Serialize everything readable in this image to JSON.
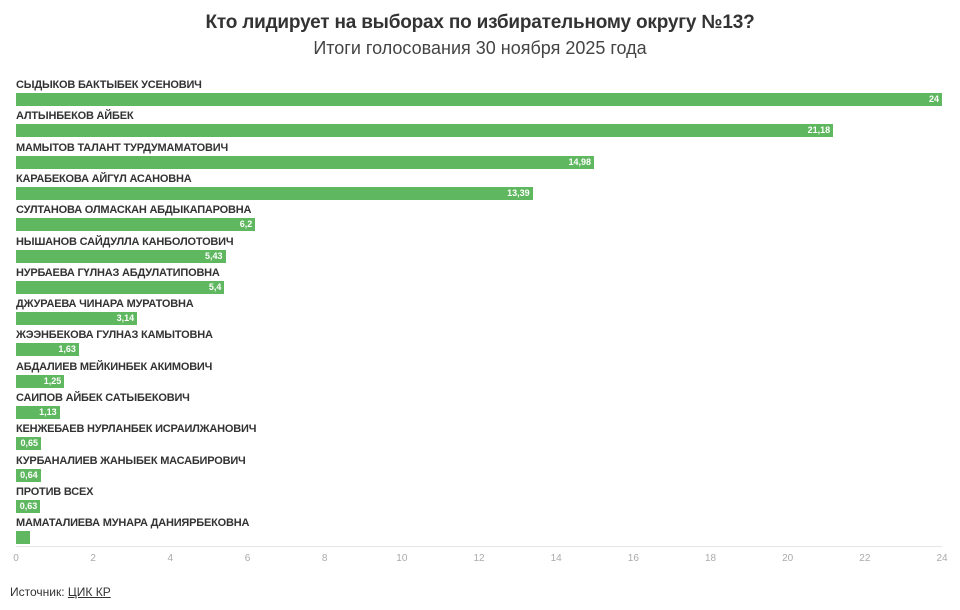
{
  "header": {
    "title": "Кто лидирует на выборах по избирательному округу №13?",
    "subtitle": "Итоги голосования 30 ноября 2025 года"
  },
  "footer": {
    "source_label": "Источник:",
    "source_link": "ЦИК КР"
  },
  "colors": {
    "bar": "#5fb75f",
    "text": "#333333",
    "axis_tick": "#aaaaaa"
  },
  "chart_data": {
    "type": "bar",
    "orientation": "horizontal",
    "title": "Кто лидирует на выборах по избирательному округу №13?",
    "subtitle": "Итоги голосования 30 ноября 2025 года",
    "xlabel": "",
    "ylabel": "",
    "xlim": [
      0,
      24
    ],
    "xticks": [
      "0",
      "2",
      "4",
      "6",
      "8",
      "10",
      "12",
      "14",
      "16",
      "18",
      "20",
      "22",
      "24"
    ],
    "grid": false,
    "legend": null,
    "categories": [
      "СЫДЫКОВ БАКТЫБЕК УСЕНОВИЧ",
      "АЛТЫНБЕКОВ АЙБЕК",
      "МАМЫТОВ ТАЛАНТ ТУРДУМАМАТОВИЧ",
      "КАРАБЕКОВА АЙГҮЛ АСАНОВНА",
      "СУЛТАНОВА ОЛМАСКАН АБДЫКАПАРОВНА",
      "НЫШАНОВ САЙДУЛЛА КАНБОЛОТОВИЧ",
      "НУРБАЕВА ГҮЛНАЗ АБДУЛАТИПОВНА",
      "ДЖУРАЕВА ЧИНАРА МУРАТОВНА",
      "ЖЭЭНБЕКОВА ГУЛНАЗ КАМЫТОВНА",
      "АБДАЛИЕВ МЕЙКИНБЕК АКИМОВИЧ",
      "САИПОВ АЙБЕК САТЫБЕКОВИЧ",
      "КЕНЖЕБАЕВ НУРЛАНБЕК ИСРАИЛЖАНОВИЧ",
      "КУРБАНАЛИЕВ ЖАНЫБЕК МАСАБИРОВИЧ",
      "ПРОТИВ ВСЕХ",
      "МАМАТАЛИЕВА МУНАРА ДАНИЯРБЕКОВНА"
    ],
    "values": [
      24,
      21.18,
      14.98,
      13.39,
      6.2,
      5.43,
      5.4,
      3.14,
      1.63,
      1.25,
      1.13,
      0.65,
      0.64,
      0.63,
      0.35
    ],
    "value_labels": [
      "24",
      "21,18",
      "14,98",
      "13,39",
      "6,2",
      "5,43",
      "5,4",
      "3,14",
      "1,63",
      "1,25",
      "1,13",
      "0,65",
      "0,64",
      "0,63",
      ""
    ]
  },
  "rows": [
    {
      "label": "СЫДЫКОВ БАКТЫБЕК УСЕНОВИЧ",
      "value": 24,
      "value_label": "24"
    },
    {
      "label": "АЛТЫНБЕКОВ АЙБЕК",
      "value": 21.18,
      "value_label": "21,18"
    },
    {
      "label": "МАМЫТОВ ТАЛАНТ ТУРДУМАМАТОВИЧ",
      "value": 14.98,
      "value_label": "14,98"
    },
    {
      "label": "КАРАБЕКОВА АЙГҮЛ АСАНОВНА",
      "value": 13.39,
      "value_label": "13,39"
    },
    {
      "label": "СУЛТАНОВА ОЛМАСКАН АБДЫКАПАРОВНА",
      "value": 6.2,
      "value_label": "6,2"
    },
    {
      "label": "НЫШАНОВ САЙДУЛЛА КАНБОЛОТОВИЧ",
      "value": 5.43,
      "value_label": "5,43"
    },
    {
      "label": "НУРБАЕВА ГҮЛНАЗ АБДУЛАТИПОВНА",
      "value": 5.4,
      "value_label": "5,4"
    },
    {
      "label": "ДЖУРАЕВА ЧИНАРА МУРАТОВНА",
      "value": 3.14,
      "value_label": "3,14"
    },
    {
      "label": "ЖЭЭНБЕКОВА ГУЛНАЗ КАМЫТОВНА",
      "value": 1.63,
      "value_label": "1,63"
    },
    {
      "label": "АБДАЛИЕВ МЕЙКИНБЕК АКИМОВИЧ",
      "value": 1.25,
      "value_label": "1,25"
    },
    {
      "label": "САИПОВ АЙБЕК САТЫБЕКОВИЧ",
      "value": 1.13,
      "value_label": "1,13"
    },
    {
      "label": "КЕНЖЕБАЕВ НУРЛАНБЕК ИСРАИЛЖАНОВИЧ",
      "value": 0.65,
      "value_label": "0,65"
    },
    {
      "label": "КУРБАНАЛИЕВ ЖАНЫБЕК МАСАБИРОВИЧ",
      "value": 0.64,
      "value_label": "0,64"
    },
    {
      "label": "ПРОТИВ ВСЕХ",
      "value": 0.63,
      "value_label": "0,63"
    },
    {
      "label": "МАМАТАЛИЕВА МУНАРА ДАНИЯРБЕКОВНА",
      "value": 0.35,
      "value_label": ""
    }
  ],
  "axis": {
    "max": 24,
    "ticks": [
      "0",
      "2",
      "4",
      "6",
      "8",
      "10",
      "12",
      "14",
      "16",
      "18",
      "20",
      "22",
      "24"
    ]
  }
}
